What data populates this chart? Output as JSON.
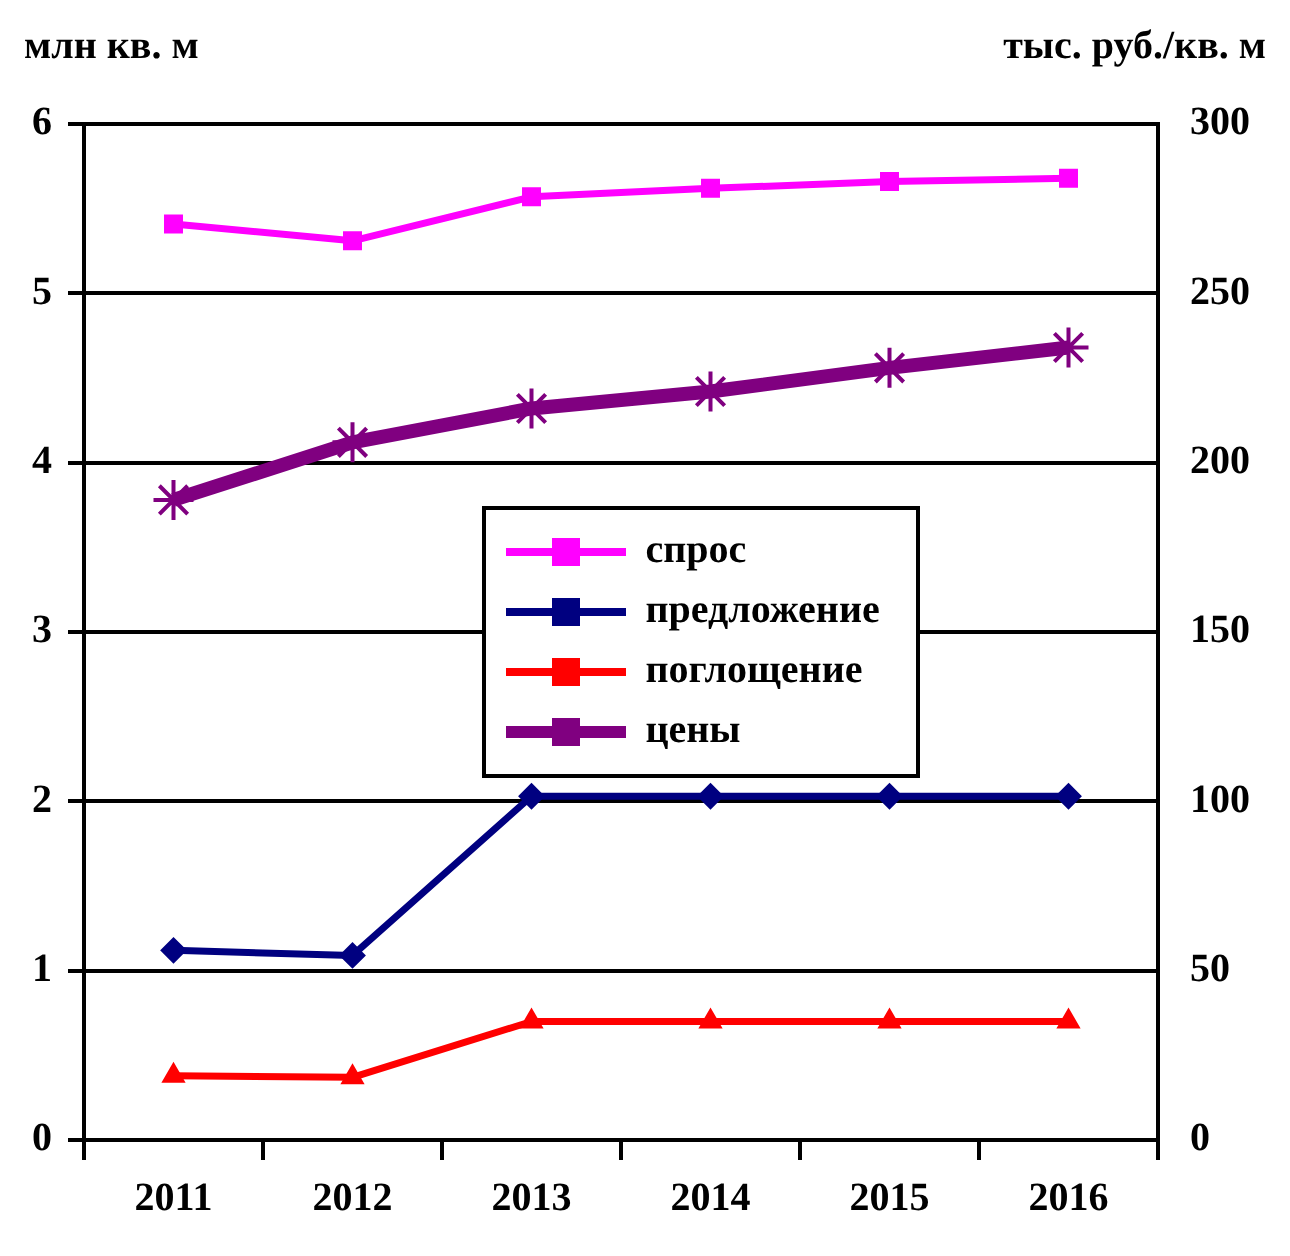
{
  "chart_data": {
    "type": "line",
    "ylabel": "млн кв. м",
    "y2label": "тыс. руб./кв. м",
    "categories": [
      "2011",
      "2012",
      "2013",
      "2014",
      "2015",
      "2016"
    ],
    "series": [
      {
        "name": "спрос",
        "color": "#ff00ff",
        "marker": "square",
        "values": [
          5.41,
          5.31,
          5.57,
          5.62,
          5.66,
          5.68
        ]
      },
      {
        "name": "предложение",
        "color": "#000080",
        "marker": "diamond",
        "values": [
          1.12,
          1.09,
          2.03,
          2.03,
          2.03,
          2.03
        ]
      },
      {
        "name": "поглощение",
        "color": "#ff0000",
        "marker": "triangle",
        "values": [
          0.38,
          0.37,
          0.7,
          0.7,
          0.7,
          0.7
        ]
      },
      {
        "name": "цены",
        "color": "#800080",
        "marker": "cross",
        "axis": "y2",
        "values": [
          189,
          206,
          216,
          221,
          228,
          234
        ]
      }
    ],
    "ylim": [
      0,
      6
    ],
    "yticks": [
      0,
      1,
      2,
      3,
      4,
      5,
      6
    ],
    "y2lim": [
      0,
      300
    ],
    "y2ticks": [
      0,
      50,
      100,
      150,
      200,
      250,
      300
    ],
    "grid": "y",
    "legend": "center"
  }
}
